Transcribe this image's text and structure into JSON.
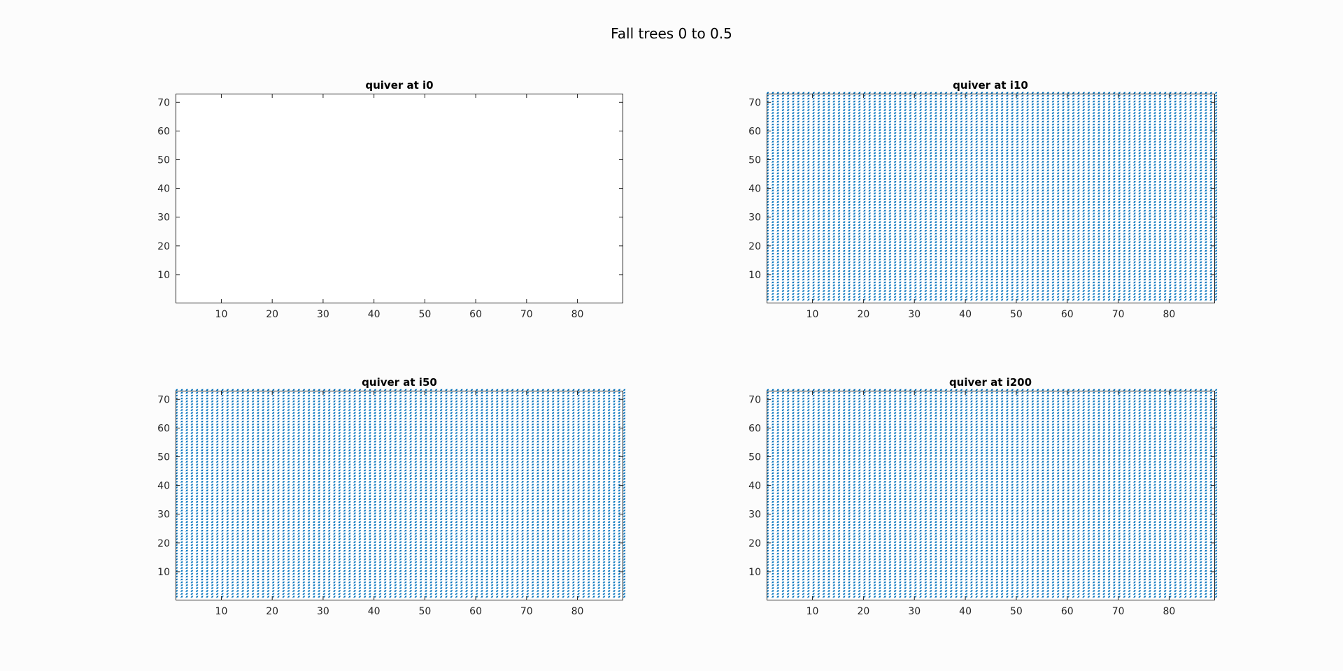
{
  "figure": {
    "suptitle": "Fall trees 0 to 0.5",
    "background": "#fcfcfc",
    "arrow_color": "#0072bd",
    "axes_color": "#262626"
  },
  "chart_data": [
    {
      "type": "quiver",
      "title": "quiver at i0",
      "xlim": [
        1,
        89
      ],
      "ylim": [
        0,
        73
      ],
      "xticks": [
        10,
        20,
        30,
        40,
        50,
        60,
        70,
        80
      ],
      "yticks": [
        10,
        20,
        30,
        40,
        50,
        60,
        70
      ],
      "grid": false,
      "field": {
        "visible": false,
        "nx": 89,
        "ny": 73,
        "u": 0,
        "v": 0
      }
    },
    {
      "type": "quiver",
      "title": "quiver at i10",
      "xlim": [
        1,
        89
      ],
      "ylim": [
        0,
        73
      ],
      "xticks": [
        10,
        20,
        30,
        40,
        50,
        60,
        70,
        80
      ],
      "yticks": [
        10,
        20,
        30,
        40,
        50,
        60,
        70
      ],
      "grid": false,
      "field": {
        "visible": true,
        "nx": 89,
        "ny": 73,
        "u": 0.35,
        "v": 0.45
      }
    },
    {
      "type": "quiver",
      "title": "quiver at i50",
      "xlim": [
        1,
        89
      ],
      "ylim": [
        0,
        73
      ],
      "xticks": [
        10,
        20,
        30,
        40,
        50,
        60,
        70,
        80
      ],
      "yticks": [
        10,
        20,
        30,
        40,
        50,
        60,
        70
      ],
      "grid": false,
      "field": {
        "visible": true,
        "nx": 89,
        "ny": 73,
        "u": 0.35,
        "v": 0.45
      }
    },
    {
      "type": "quiver",
      "title": "quiver at i200",
      "xlim": [
        1,
        89
      ],
      "ylim": [
        0,
        73
      ],
      "xticks": [
        10,
        20,
        30,
        40,
        50,
        60,
        70,
        80
      ],
      "yticks": [
        10,
        20,
        30,
        40,
        50,
        60,
        70
      ],
      "grid": false,
      "field": {
        "visible": true,
        "nx": 89,
        "ny": 73,
        "u": 0.35,
        "v": 0.45
      }
    }
  ]
}
